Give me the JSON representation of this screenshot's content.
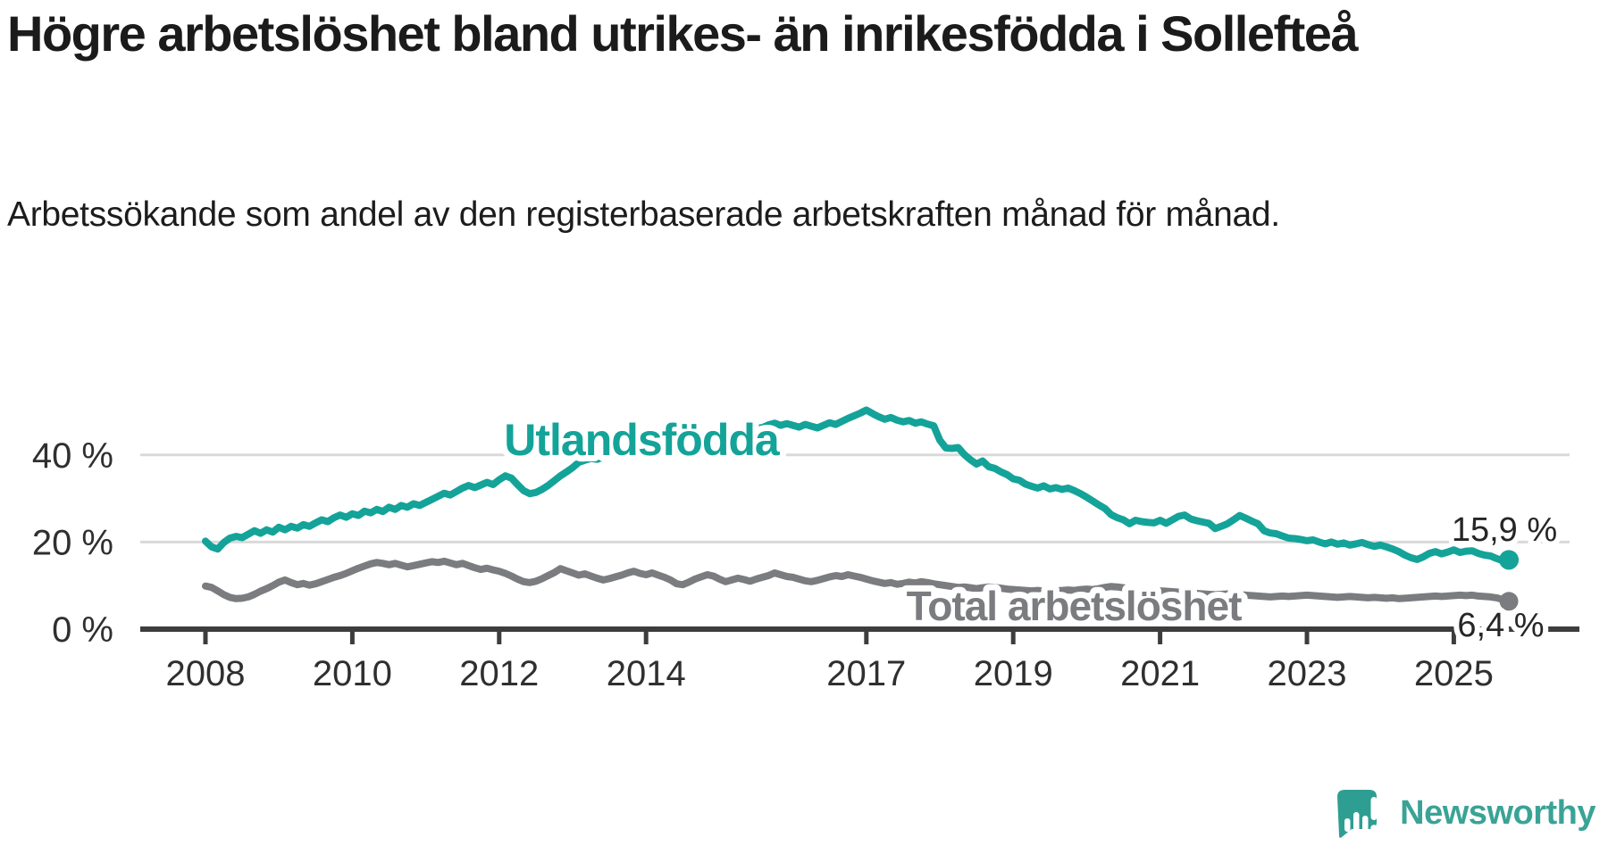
{
  "page": {
    "title": "Högre arbetslöshet bland utrikes- än inrikesfödda i Sollefteå",
    "subtitle": "Arbetssökande som andel av den registerbaserade arbetskraften månad för månad."
  },
  "colors": {
    "teal_line": "#14a399",
    "gray_line": "#7b7c80",
    "grid": "#d9d9d9",
    "axis": "#3d3d3d",
    "tick_text": "#2f2f2f",
    "end_label_text": "#262626",
    "logo_teal": "#3aa396",
    "logo_icon_teal": "#2f9e92"
  },
  "chart_data": {
    "type": "line",
    "title": "Högre arbetslöshet bland utrikes- än inrikesfödda i Sollefteå",
    "subtitle": "Arbetssökande som andel av den registerbaserade arbetskraften månad för månad.",
    "x_start": "2008-01",
    "x_end": "2025-10",
    "points_per_year": 12,
    "x_tick_years": [
      2008,
      2010,
      2012,
      2014,
      2017,
      2019,
      2021,
      2023,
      2025
    ],
    "x_tick_labels": [
      "2008",
      "2010",
      "2012",
      "2014",
      "2017",
      "2019",
      "2021",
      "2023",
      "2025"
    ],
    "y_ticks": [
      {
        "value": 0,
        "label": "0 %"
      },
      {
        "value": 20,
        "label": "20 %"
      },
      {
        "value": 40,
        "label": "40 %"
      }
    ],
    "ylim": [
      0,
      55
    ],
    "grid": true,
    "legend_position": "inline-labels",
    "series": [
      {
        "name": "Utlandsfödda",
        "color": "#14a399",
        "end_label": "15,9 %",
        "end_value": 15.9,
        "values": [
          20.2,
          18.9,
          18.4,
          19.9,
          20.9,
          21.3,
          21.0,
          21.8,
          22.6,
          22.0,
          22.8,
          22.3,
          23.4,
          22.8,
          23.6,
          23.2,
          24.0,
          23.6,
          24.4,
          25.1,
          24.7,
          25.6,
          26.2,
          25.7,
          26.5,
          26.1,
          27.1,
          26.7,
          27.5,
          27.0,
          28.0,
          27.5,
          28.4,
          28.0,
          28.8,
          28.4,
          29.1,
          29.8,
          30.5,
          31.2,
          30.8,
          31.6,
          32.4,
          33.0,
          32.5,
          33.1,
          33.7,
          33.2,
          34.3,
          35.2,
          34.7,
          33.2,
          31.8,
          31.1,
          31.4,
          32.1,
          33.0,
          34.1,
          35.2,
          36.1,
          37.1,
          38.3,
          38.8,
          39.2,
          39.0,
          39.5,
          40.0,
          40.3,
          40.1,
          40.6,
          41.0,
          41.3,
          41.6,
          41.9,
          42.3,
          42.1,
          42.6,
          43.0,
          42.8,
          43.3,
          43.7,
          44.0,
          44.4,
          44.2,
          44.6,
          45.0,
          45.3,
          45.1,
          45.6,
          45.9,
          46.1,
          46.3,
          46.9,
          47.3,
          46.8,
          47.2,
          46.8,
          46.4,
          47.0,
          46.6,
          46.2,
          46.8,
          47.4,
          47.0,
          47.7,
          48.4,
          49.0,
          49.6,
          50.3,
          49.5,
          48.8,
          48.2,
          48.6,
          48.0,
          47.6,
          47.9,
          47.3,
          47.6,
          47.1,
          46.7,
          43.4,
          41.6,
          41.5,
          41.7,
          40.1,
          38.9,
          37.9,
          38.6,
          37.3,
          36.9,
          36.1,
          35.5,
          34.5,
          34.2,
          33.3,
          32.8,
          32.4,
          32.9,
          32.2,
          32.5,
          32.1,
          32.4,
          31.8,
          31.1,
          30.3,
          29.4,
          28.5,
          27.7,
          26.3,
          25.6,
          25.1,
          24.2,
          25.0,
          24.7,
          24.5,
          24.4,
          25.0,
          24.3,
          25.1,
          25.9,
          26.2,
          25.3,
          24.9,
          24.6,
          24.3,
          23.1,
          23.6,
          24.2,
          25.1,
          26.1,
          25.5,
          24.8,
          24.2,
          22.6,
          22.1,
          21.9,
          21.4,
          20.9,
          20.8,
          20.6,
          20.3,
          20.5,
          20.0,
          19.6,
          20.0,
          19.5,
          19.8,
          19.3,
          19.6,
          19.9,
          19.4,
          19.0,
          19.3,
          18.9,
          18.4,
          17.8,
          17.0,
          16.4,
          16.0,
          16.6,
          17.4,
          17.8,
          17.3,
          17.7,
          18.2,
          17.6,
          17.9,
          18.0,
          17.4,
          17.0,
          16.8,
          16.2,
          15.7,
          15.9
        ]
      },
      {
        "name": "Total arbetslöshet",
        "color": "#7b7c80",
        "end_label": "6,4 %",
        "end_value": 6.4,
        "values": [
          9.9,
          9.6,
          8.8,
          7.9,
          7.3,
          7.0,
          7.1,
          7.4,
          8.0,
          8.7,
          9.3,
          10.0,
          10.8,
          11.3,
          10.7,
          10.2,
          10.5,
          10.1,
          10.4,
          10.9,
          11.4,
          11.9,
          12.3,
          12.8,
          13.4,
          14.0,
          14.5,
          15.0,
          15.3,
          15.1,
          14.8,
          15.1,
          14.7,
          14.3,
          14.6,
          14.9,
          15.2,
          15.5,
          15.3,
          15.6,
          15.2,
          14.8,
          15.1,
          14.6,
          14.1,
          13.7,
          14.0,
          13.6,
          13.3,
          12.8,
          12.2,
          11.5,
          10.9,
          10.7,
          11.0,
          11.6,
          12.3,
          13.0,
          13.9,
          13.4,
          12.9,
          12.4,
          12.7,
          12.2,
          11.7,
          11.3,
          11.6,
          12.0,
          12.4,
          12.9,
          13.3,
          12.8,
          12.5,
          12.9,
          12.4,
          11.9,
          11.3,
          10.4,
          10.2,
          10.8,
          11.5,
          12.0,
          12.5,
          12.2,
          11.5,
          10.9,
          11.3,
          11.7,
          11.4,
          11.0,
          11.5,
          11.9,
          12.3,
          12.9,
          12.5,
          12.1,
          11.9,
          11.5,
          11.1,
          10.9,
          11.2,
          11.6,
          12.0,
          12.3,
          12.1,
          12.5,
          12.2,
          11.9,
          11.5,
          11.1,
          10.8,
          10.5,
          10.7,
          10.3,
          10.5,
          10.8,
          10.6,
          10.9,
          10.7,
          10.4,
          10.2,
          10.0,
          9.8,
          9.6,
          9.7,
          9.5,
          9.3,
          9.5,
          9.7,
          9.6,
          9.4,
          9.2,
          9.1,
          9.0,
          8.9,
          8.8,
          8.9,
          8.7,
          8.6,
          8.8,
          8.9,
          9.0,
          8.9,
          9.1,
          9.2,
          9.1,
          9.3,
          9.6,
          9.8,
          9.7,
          9.5,
          9.3,
          9.1,
          8.9,
          8.8,
          8.7,
          8.8,
          8.7,
          8.6,
          8.5,
          8.4,
          8.3,
          8.2,
          8.1,
          8.0,
          7.9,
          8.0,
          8.1,
          8.0,
          7.9,
          7.8,
          7.7,
          7.6,
          7.5,
          7.4,
          7.5,
          7.6,
          7.5,
          7.6,
          7.7,
          7.8,
          7.7,
          7.6,
          7.5,
          7.4,
          7.3,
          7.4,
          7.5,
          7.4,
          7.3,
          7.2,
          7.3,
          7.2,
          7.1,
          7.2,
          7.0,
          7.1,
          7.2,
          7.3,
          7.4,
          7.5,
          7.6,
          7.5,
          7.6,
          7.7,
          7.8,
          7.7,
          7.8,
          7.6,
          7.5,
          7.4,
          7.2,
          6.8,
          6.4
        ]
      }
    ]
  },
  "logo": {
    "text": "Newsworthy",
    "icon": "speech-bubble-bar-chart-exclamation-icon"
  }
}
